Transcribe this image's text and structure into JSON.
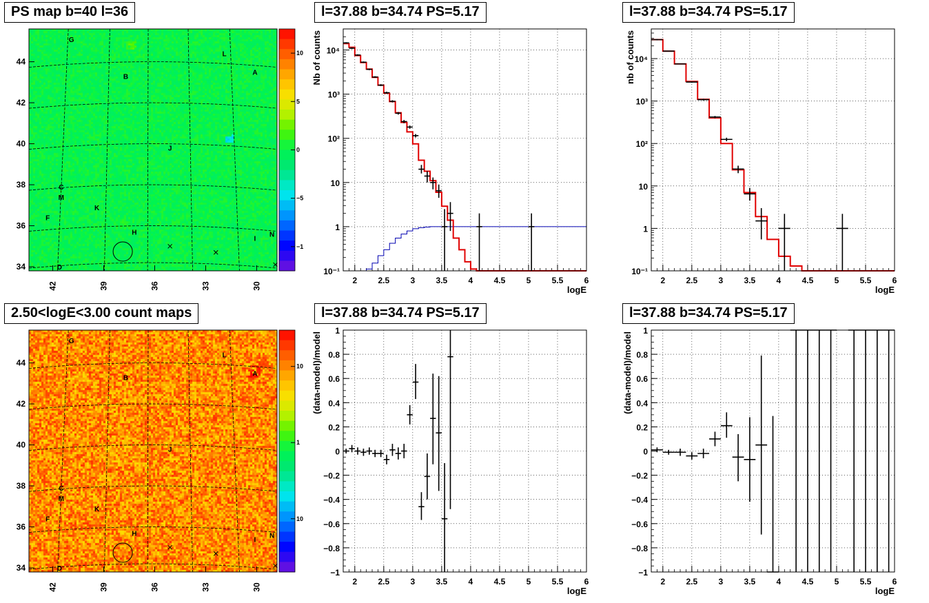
{
  "colors": {
    "model": "#e00000",
    "instrument": "#0000b0",
    "data": "#000000",
    "frame": "#000000",
    "grid": "#000000"
  },
  "maps": [
    {
      "id": "ps-map",
      "title": "PS map b=40 l=36",
      "x_ticks": [
        "42",
        "39",
        "36",
        "33",
        "30"
      ],
      "x_tick_values": [
        42,
        39,
        36,
        33,
        30
      ],
      "y_ticks": [
        "34",
        "36",
        "38",
        "40",
        "42",
        "44"
      ],
      "y_tick_values": [
        34,
        36,
        38,
        40,
        42,
        44
      ],
      "l_range": [
        43.4,
        28.8
      ],
      "b_range": [
        33.8,
        45.6
      ],
      "colorbar_ticks": [
        "10",
        "5",
        "0",
        "−5",
        "−10"
      ],
      "colorbar_tick_values": [
        10,
        5,
        0,
        -5,
        -10
      ],
      "colorbar_range": [
        -12.5,
        12.5
      ],
      "colorbar_scale": "linear",
      "background_level": 0.5,
      "sources": [
        {
          "label": "G",
          "l": 40.9,
          "b": 45.1
        },
        {
          "label": "L",
          "l": 31.9,
          "b": 44.4
        },
        {
          "label": "A",
          "l": 30.1,
          "b": 43.5
        },
        {
          "label": "B",
          "l": 37.7,
          "b": 43.3
        },
        {
          "label": "J",
          "l": 35.1,
          "b": 39.8
        },
        {
          "label": "C",
          "l": 41.5,
          "b": 37.9
        },
        {
          "label": "M",
          "l": 41.5,
          "b": 37.4
        },
        {
          "label": "K",
          "l": 39.4,
          "b": 36.9
        },
        {
          "label": "F",
          "l": 42.3,
          "b": 36.4
        },
        {
          "label": "H",
          "l": 37.2,
          "b": 35.7
        },
        {
          "label": "N",
          "l": 29.1,
          "b": 35.6
        },
        {
          "label": "I",
          "l": 30.1,
          "b": 35.4
        },
        {
          "label": "D",
          "l": 41.6,
          "b": 34.0
        }
      ],
      "crosses": [
        {
          "l": 35.1,
          "b": 35.0
        },
        {
          "l": 32.4,
          "b": 34.7
        },
        {
          "l": 28.9,
          "b": 34.1
        }
      ],
      "circle": {
        "l": 37.88,
        "b": 34.74
      }
    },
    {
      "id": "count-map",
      "title": "2.50<logE<3.00 count maps",
      "x_ticks": [
        "42",
        "39",
        "36",
        "33",
        "30"
      ],
      "x_tick_values": [
        42,
        39,
        36,
        33,
        30
      ],
      "y_ticks": [
        "34",
        "36",
        "38",
        "40",
        "42",
        "44"
      ],
      "y_tick_values": [
        34,
        36,
        38,
        40,
        42,
        44
      ],
      "l_range": [
        43.4,
        28.8
      ],
      "b_range": [
        33.8,
        45.6
      ],
      "colorbar_ticks": [
        "10",
        "1",
        "10⁻¹"
      ],
      "colorbar_tick_values": [
        10,
        1,
        0.1
      ],
      "colorbar_range": [
        0.02,
        30
      ],
      "colorbar_scale": "log",
      "background_level": 0.84,
      "sources": [
        {
          "label": "G",
          "l": 40.9,
          "b": 45.1
        },
        {
          "label": "L",
          "l": 31.9,
          "b": 44.4
        },
        {
          "label": "A",
          "l": 30.1,
          "b": 43.5
        },
        {
          "label": "B",
          "l": 37.7,
          "b": 43.3
        },
        {
          "label": "J",
          "l": 35.1,
          "b": 39.8
        },
        {
          "label": "C",
          "l": 41.5,
          "b": 37.9
        },
        {
          "label": "M",
          "l": 41.5,
          "b": 37.4
        },
        {
          "label": "K",
          "l": 39.4,
          "b": 36.9
        },
        {
          "label": "F",
          "l": 42.3,
          "b": 36.4
        },
        {
          "label": "H",
          "l": 37.2,
          "b": 35.7
        },
        {
          "label": "N",
          "l": 29.1,
          "b": 35.6
        },
        {
          "label": "I",
          "l": 30.1,
          "b": 35.4
        },
        {
          "label": "D",
          "l": 41.6,
          "b": 34.0
        }
      ],
      "crosses": [
        {
          "l": 35.1,
          "b": 35.0
        },
        {
          "l": 32.4,
          "b": 34.7
        },
        {
          "l": 28.9,
          "b": 34.1
        }
      ],
      "circle": {
        "l": 37.88,
        "b": 34.74
      }
    }
  ],
  "chart_data": [
    {
      "id": "spectrum-fine",
      "type": "line",
      "title": "l=37.88 b=34.74 PS=5.17",
      "xlabel": "logE",
      "ylabel": "Nb of counts",
      "xlim": [
        1.8,
        6
      ],
      "ylim": [
        0.1,
        30000
      ],
      "yscale": "log",
      "grid": true,
      "x_ticks": [
        "2",
        "2.5",
        "3",
        "3.5",
        "4",
        "4.5",
        "5",
        "5.5",
        "6"
      ],
      "x_tick_values": [
        2,
        2.5,
        3,
        3.5,
        4,
        4.5,
        5,
        5.5,
        6
      ],
      "y_ticks": [
        "10⁻¹",
        "1",
        "10",
        "10²",
        "10³",
        "10⁴"
      ],
      "y_tick_values": [
        0.1,
        1,
        10,
        100,
        1000,
        10000
      ],
      "model_edges": [
        1.8,
        1.9,
        2.0,
        2.1,
        2.2,
        2.3,
        2.4,
        2.5,
        2.6,
        2.7,
        2.8,
        2.9,
        3.0,
        3.1,
        3.2,
        3.3,
        3.4,
        3.5,
        3.6,
        3.7,
        3.8,
        3.9,
        4.0,
        4.1,
        4.2,
        6.0
      ],
      "model_values": [
        14000,
        11500,
        7500,
        5200,
        3700,
        2400,
        1600,
        1050,
        680,
        380,
        230,
        140,
        75,
        32,
        18,
        11,
        6,
        2.9,
        1.4,
        0.55,
        0.3,
        0.16,
        0.11,
        0.1,
        0.1
      ],
      "instrument_edges": [
        2.1,
        2.2,
        2.3,
        2.4,
        2.5,
        2.6,
        2.7,
        2.8,
        2.9,
        3.0,
        3.1,
        3.2,
        3.3,
        3.4,
        3.5,
        6.0
      ],
      "instrument_values": [
        0.1,
        0.11,
        0.15,
        0.22,
        0.3,
        0.42,
        0.55,
        0.68,
        0.8,
        0.9,
        0.95,
        0.98,
        1.0,
        1.0,
        1.0,
        1.0
      ],
      "points": [
        {
          "x": 1.85,
          "y": 14500,
          "lo": 14000,
          "hi": 15000
        },
        {
          "x": 1.95,
          "y": 11000,
          "lo": 10500,
          "hi": 11500
        },
        {
          "x": 2.05,
          "y": 7700,
          "lo": 7400,
          "hi": 8000
        },
        {
          "x": 2.15,
          "y": 5300,
          "lo": 5100,
          "hi": 5500
        },
        {
          "x": 2.25,
          "y": 3650,
          "lo": 3500,
          "hi": 3800
        },
        {
          "x": 2.35,
          "y": 2450,
          "lo": 2350,
          "hi": 2550
        },
        {
          "x": 2.45,
          "y": 1600,
          "lo": 1530,
          "hi": 1680
        },
        {
          "x": 2.55,
          "y": 1080,
          "lo": 1020,
          "hi": 1140
        },
        {
          "x": 2.65,
          "y": 690,
          "lo": 650,
          "hi": 730
        },
        {
          "x": 2.75,
          "y": 370,
          "lo": 345,
          "hi": 395
        },
        {
          "x": 2.85,
          "y": 240,
          "lo": 220,
          "hi": 260
        },
        {
          "x": 2.95,
          "y": 180,
          "lo": 165,
          "hi": 195
        },
        {
          "x": 3.05,
          "y": 115,
          "lo": 105,
          "hi": 125
        },
        {
          "x": 3.15,
          "y": 20,
          "lo": 16,
          "hi": 25
        },
        {
          "x": 3.25,
          "y": 14,
          "lo": 10,
          "hi": 18
        },
        {
          "x": 3.35,
          "y": 10,
          "lo": 7,
          "hi": 13
        },
        {
          "x": 3.45,
          "y": 6.5,
          "lo": 4.5,
          "hi": 9
        },
        {
          "x": 3.55,
          "y": 1,
          "lo": 0.1,
          "hi": 2.5
        },
        {
          "x": 3.65,
          "y": 2,
          "lo": 0.8,
          "hi": 3.6
        },
        {
          "x": 4.15,
          "y": 1,
          "lo": 0.1,
          "hi": 2
        },
        {
          "x": 5.05,
          "y": 1,
          "lo": 0.1,
          "hi": 2
        }
      ]
    },
    {
      "id": "spectrum-coarse",
      "type": "line",
      "title": "l=37.88 b=34.74 PS=5.17",
      "xlabel": "logE",
      "ylabel": "nb of counts",
      "xlim": [
        1.8,
        6
      ],
      "ylim": [
        0.1,
        50000
      ],
      "yscale": "log",
      "grid": true,
      "x_ticks": [
        "2",
        "2.5",
        "3",
        "3.5",
        "4",
        "4.5",
        "5",
        "5.5",
        "6"
      ],
      "x_tick_values": [
        2,
        2.5,
        3,
        3.5,
        4,
        4.5,
        5,
        5.5,
        6
      ],
      "y_ticks": [
        "10⁻¹",
        "1",
        "10",
        "10²",
        "10³",
        "10⁴"
      ],
      "y_tick_values": [
        0.1,
        1,
        10,
        100,
        1000,
        10000
      ],
      "model_edges": [
        1.8,
        2.0,
        2.2,
        2.4,
        2.6,
        2.8,
        3.0,
        3.2,
        3.4,
        3.6,
        3.8,
        4.0,
        4.2,
        4.4,
        6.0
      ],
      "model_values": [
        28000,
        15000,
        7500,
        2900,
        1100,
        400,
        100,
        24,
        7,
        1.9,
        0.55,
        0.22,
        0.13,
        0.1
      ],
      "points": [
        {
          "x": 1.9,
          "y": 28000,
          "lo": 27000,
          "hi": 29000
        },
        {
          "x": 2.1,
          "y": 15000,
          "lo": 14600,
          "hi": 15400
        },
        {
          "x": 2.3,
          "y": 7500,
          "lo": 7300,
          "hi": 7700
        },
        {
          "x": 2.5,
          "y": 2800,
          "lo": 2700,
          "hi": 2900
        },
        {
          "x": 2.7,
          "y": 1080,
          "lo": 1030,
          "hi": 1130
        },
        {
          "x": 2.9,
          "y": 420,
          "lo": 395,
          "hi": 445
        },
        {
          "x": 3.1,
          "y": 125,
          "lo": 113,
          "hi": 137
        },
        {
          "x": 3.3,
          "y": 25,
          "lo": 20,
          "hi": 30
        },
        {
          "x": 3.5,
          "y": 6.5,
          "lo": 4.5,
          "hi": 9
        },
        {
          "x": 3.7,
          "y": 1.5,
          "lo": 0.55,
          "hi": 3
        },
        {
          "x": 4.1,
          "y": 1,
          "lo": 0.1,
          "hi": 2.2
        },
        {
          "x": 5.1,
          "y": 1,
          "lo": 0.1,
          "hi": 2.2
        }
      ]
    },
    {
      "id": "residual-fine",
      "type": "scatter",
      "title": "l=37.88 b=34.74 PS=5.17",
      "xlabel": "logE",
      "ylabel": "(data-model)/model",
      "xlim": [
        1.8,
        6
      ],
      "ylim": [
        -1,
        1
      ],
      "grid": true,
      "x_ticks": [
        "2",
        "2.5",
        "3",
        "3.5",
        "4",
        "4.5",
        "5",
        "5.5",
        "6"
      ],
      "x_tick_values": [
        2,
        2.5,
        3,
        3.5,
        4,
        4.5,
        5,
        5.5,
        6
      ],
      "y_ticks": [
        "−1",
        "−0.8",
        "−0.6",
        "−0.4",
        "−0.2",
        "0",
        "0.2",
        "0.4",
        "0.6",
        "0.8",
        "1"
      ],
      "y_tick_values": [
        -1,
        -0.8,
        -0.6,
        -0.4,
        -0.2,
        0,
        0.2,
        0.4,
        0.6,
        0.8,
        1
      ],
      "x_halfwidth": 0.05,
      "points": [
        {
          "x": 1.85,
          "y": 0,
          "lo": -0.02,
          "hi": 0.02
        },
        {
          "x": 1.95,
          "y": 0.02,
          "lo": -0.01,
          "hi": 0.05
        },
        {
          "x": 2.05,
          "y": 0,
          "lo": -0.03,
          "hi": 0.03
        },
        {
          "x": 2.15,
          "y": -0.01,
          "lo": -0.04,
          "hi": 0.02
        },
        {
          "x": 2.25,
          "y": 0,
          "lo": -0.03,
          "hi": 0.03
        },
        {
          "x": 2.35,
          "y": -0.02,
          "lo": -0.05,
          "hi": 0.01
        },
        {
          "x": 2.45,
          "y": -0.02,
          "lo": -0.05,
          "hi": 0.01
        },
        {
          "x": 2.55,
          "y": -0.07,
          "lo": -0.11,
          "hi": -0.03
        },
        {
          "x": 2.65,
          "y": 0.01,
          "lo": -0.04,
          "hi": 0.06
        },
        {
          "x": 2.75,
          "y": -0.02,
          "lo": -0.07,
          "hi": 0.03
        },
        {
          "x": 2.85,
          "y": 0,
          "lo": -0.06,
          "hi": 0.06
        },
        {
          "x": 2.95,
          "y": 0.3,
          "lo": 0.22,
          "hi": 0.38
        },
        {
          "x": 3.05,
          "y": 0.57,
          "lo": 0.43,
          "hi": 0.72
        },
        {
          "x": 3.15,
          "y": -0.46,
          "lo": -0.57,
          "hi": -0.34
        },
        {
          "x": 3.25,
          "y": -0.21,
          "lo": -0.4,
          "hi": -0.02
        },
        {
          "x": 3.35,
          "y": 0.27,
          "lo": -0.11,
          "hi": 0.64
        },
        {
          "x": 3.45,
          "y": 0.15,
          "lo": -0.33,
          "hi": 0.62
        },
        {
          "x": 3.55,
          "y": -0.56,
          "lo": -1,
          "hi": -0.1
        },
        {
          "x": 3.65,
          "y": 0.78,
          "lo": -0.48,
          "hi": 1
        }
      ]
    },
    {
      "id": "residual-coarse",
      "type": "scatter",
      "title": "l=37.88 b=34.74 PS=5.17",
      "xlabel": "logE",
      "ylabel": "(data-model)/model",
      "xlim": [
        1.8,
        6
      ],
      "ylim": [
        -1,
        1
      ],
      "grid": true,
      "x_ticks": [
        "2",
        "2.5",
        "3",
        "3.5",
        "4",
        "4.5",
        "5",
        "5.5",
        "6"
      ],
      "x_tick_values": [
        2,
        2.5,
        3,
        3.5,
        4,
        4.5,
        5,
        5.5,
        6
      ],
      "y_ticks": [
        "−1",
        "−0.8",
        "−0.6",
        "−0.4",
        "−0.2",
        "0",
        "0.2",
        "0.4",
        "0.6",
        "0.8",
        "1"
      ],
      "y_tick_values": [
        -1,
        -0.8,
        -0.6,
        -0.4,
        -0.2,
        0,
        0.2,
        0.4,
        0.6,
        0.8,
        1
      ],
      "x_halfwidth": 0.1,
      "points": [
        {
          "x": 1.9,
          "y": 0.01,
          "lo": -0.01,
          "hi": 0.03
        },
        {
          "x": 2.1,
          "y": -0.01,
          "lo": -0.03,
          "hi": 0.01
        },
        {
          "x": 2.3,
          "y": -0.01,
          "lo": -0.04,
          "hi": 0.02
        },
        {
          "x": 2.5,
          "y": -0.04,
          "lo": -0.07,
          "hi": -0.01
        },
        {
          "x": 2.7,
          "y": -0.02,
          "lo": -0.06,
          "hi": 0.02
        },
        {
          "x": 2.9,
          "y": 0.1,
          "lo": 0.04,
          "hi": 0.16
        },
        {
          "x": 3.1,
          "y": 0.21,
          "lo": 0.11,
          "hi": 0.32
        },
        {
          "x": 3.3,
          "y": -0.05,
          "lo": -0.25,
          "hi": 0.14
        },
        {
          "x": 3.5,
          "y": -0.07,
          "lo": -0.42,
          "hi": 0.28
        },
        {
          "x": 3.7,
          "y": 0.05,
          "lo": -0.69,
          "hi": 0.79
        },
        {
          "x": 3.9,
          "y": -1,
          "lo": -1,
          "hi": 0.29
        },
        {
          "x": 4.3,
          "y": 1,
          "lo": -1,
          "hi": 1
        },
        {
          "x": 4.5,
          "y": 1,
          "lo": -1,
          "hi": 1
        },
        {
          "x": 4.7,
          "y": 1,
          "lo": -1,
          "hi": 1
        },
        {
          "x": 4.9,
          "y": 1,
          "lo": -1,
          "hi": 1
        },
        {
          "x": 5.3,
          "y": 1,
          "lo": -1,
          "hi": 1
        },
        {
          "x": 5.5,
          "y": 1,
          "lo": -1,
          "hi": 1
        },
        {
          "x": 5.7,
          "y": 1,
          "lo": -1,
          "hi": 1
        },
        {
          "x": 5.9,
          "y": 1,
          "lo": -1,
          "hi": 1
        }
      ]
    }
  ]
}
